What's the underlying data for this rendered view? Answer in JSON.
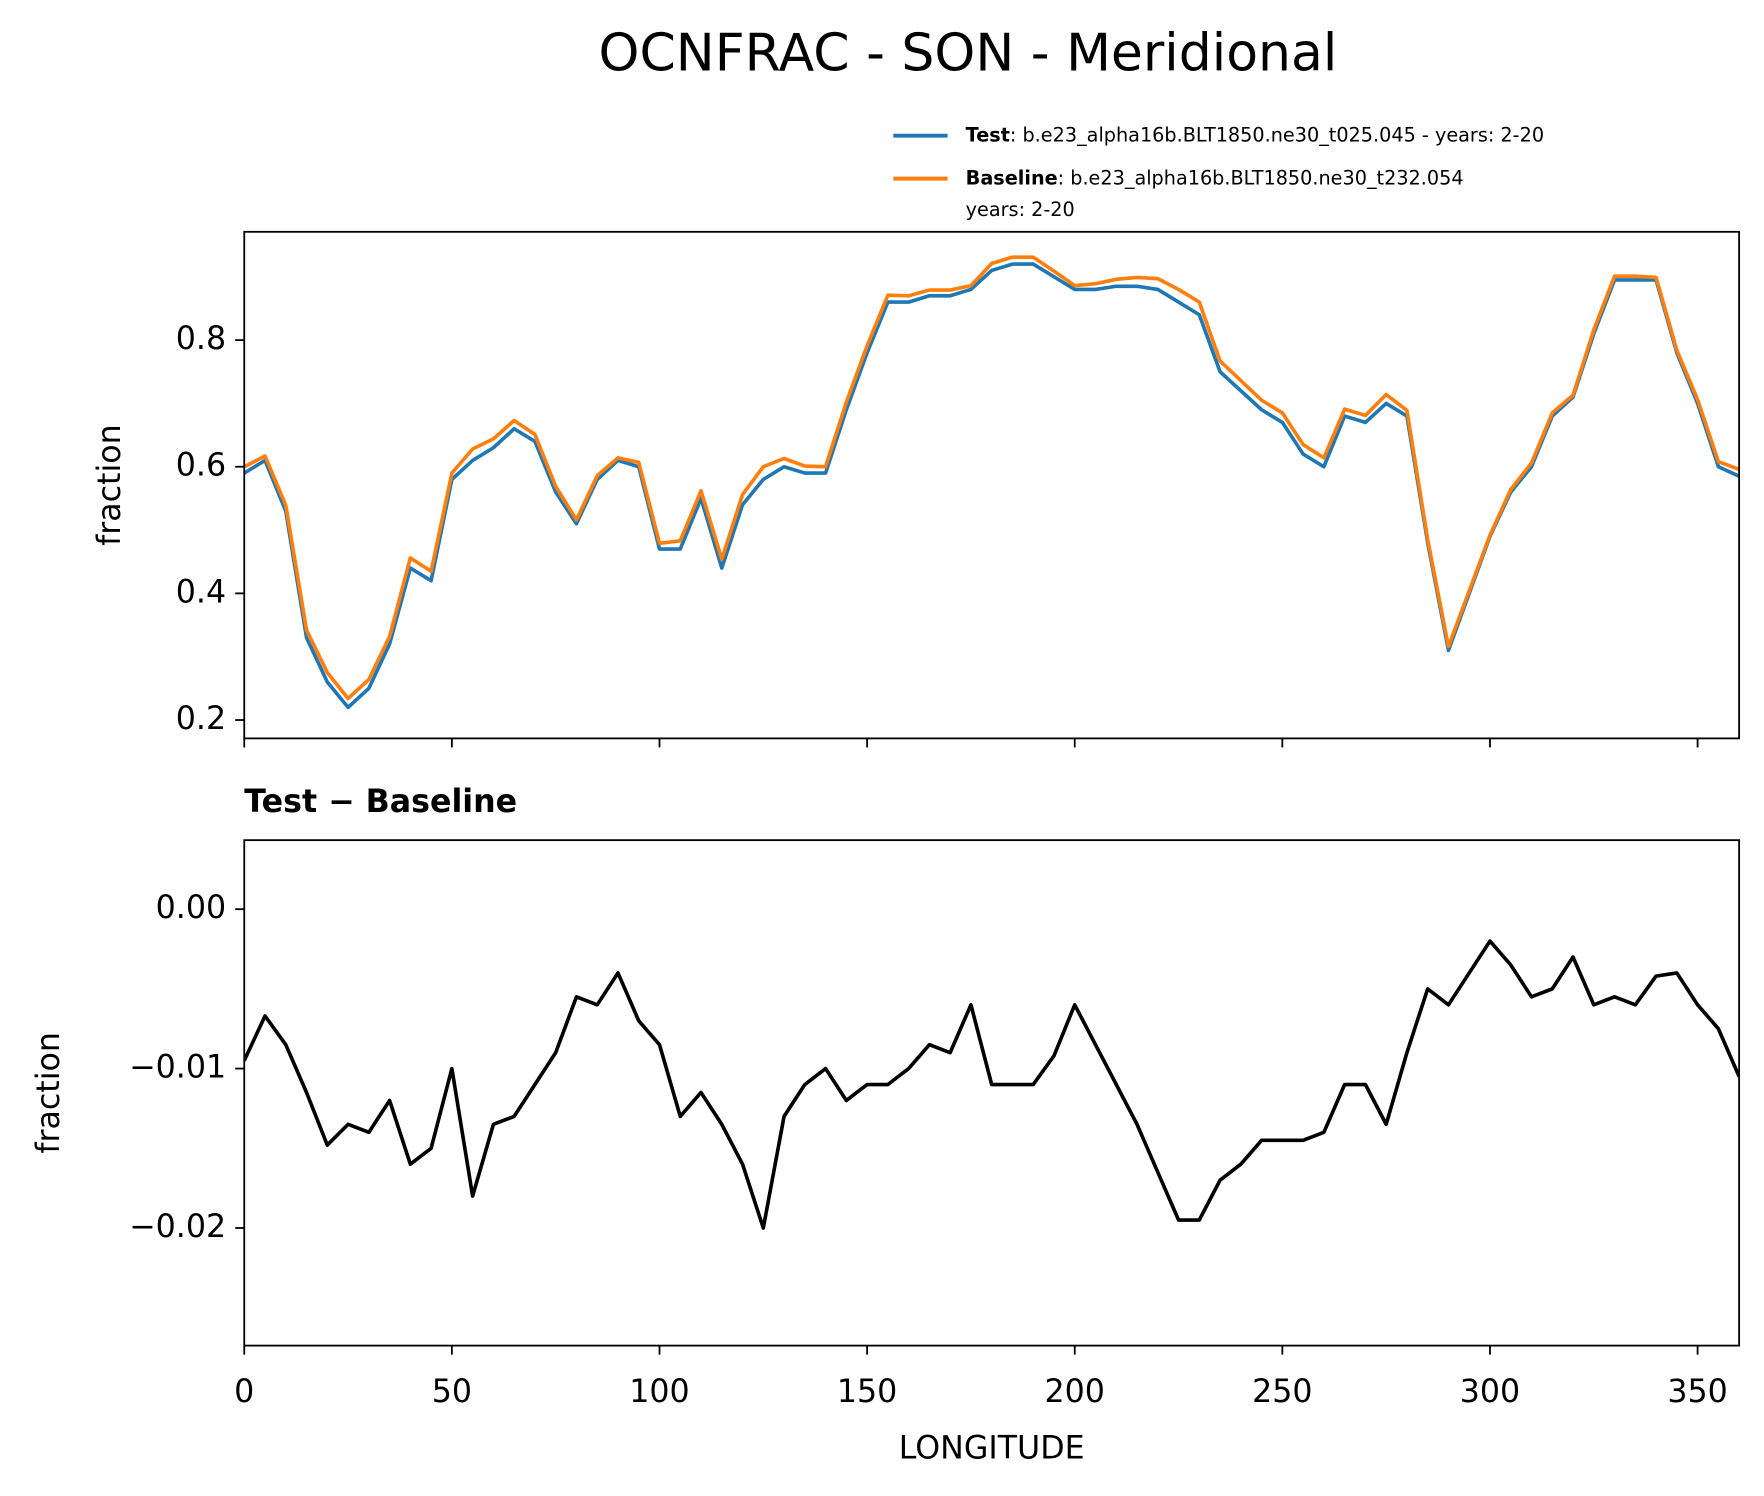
{
  "chart_data": [
    {
      "type": "line",
      "title": "OCNFRAC - SON - Meridional",
      "ylabel": "fraction",
      "x": [
        0,
        5,
        10,
        15,
        20,
        25,
        30,
        35,
        40,
        45,
        50,
        55,
        60,
        65,
        70,
        75,
        80,
        85,
        90,
        95,
        100,
        105,
        110,
        115,
        120,
        125,
        130,
        135,
        140,
        145,
        150,
        155,
        160,
        165,
        170,
        175,
        180,
        185,
        190,
        195,
        200,
        205,
        210,
        215,
        220,
        225,
        230,
        235,
        240,
        245,
        250,
        255,
        260,
        265,
        270,
        275,
        280,
        285,
        290,
        295,
        300,
        305,
        310,
        315,
        320,
        325,
        330,
        335,
        340,
        345,
        350,
        355,
        360
      ],
      "series": [
        {
          "name": "Test",
          "description": ": b.e23_alpha16b.BLT1850.ne30_t025.045 - years: 2-20",
          "color": "#1f77b4",
          "values": [
            0.59,
            0.61,
            0.53,
            0.33,
            0.26,
            0.22,
            0.25,
            0.32,
            0.44,
            0.42,
            0.58,
            0.61,
            0.63,
            0.66,
            0.64,
            0.56,
            0.51,
            0.58,
            0.61,
            0.6,
            0.47,
            0.47,
            0.55,
            0.44,
            0.54,
            0.58,
            0.6,
            0.59,
            0.59,
            0.69,
            0.78,
            0.86,
            0.86,
            0.87,
            0.87,
            0.88,
            0.91,
            0.92,
            0.92,
            0.9,
            0.88,
            0.88,
            0.885,
            0.885,
            0.88,
            0.86,
            0.84,
            0.75,
            0.72,
            0.69,
            0.67,
            0.62,
            0.6,
            0.68,
            0.67,
            0.7,
            0.68,
            0.48,
            0.31,
            0.4,
            0.49,
            0.56,
            0.6,
            0.68,
            0.71,
            0.81,
            0.895,
            0.895,
            0.895,
            0.78,
            0.7,
            0.6,
            0.585
          ]
        },
        {
          "name": "Baseline",
          "description": [
            ": b.e23_alpha16b.BLT1850.ne30_t232.054",
            "years: 2-20"
          ],
          "color": "#ff7f0e",
          "values": [
            0.6,
            0.617,
            0.539,
            0.342,
            0.275,
            0.234,
            0.264,
            0.332,
            0.456,
            0.435,
            0.59,
            0.628,
            0.644,
            0.673,
            0.651,
            0.569,
            0.516,
            0.586,
            0.614,
            0.607,
            0.479,
            0.483,
            0.562,
            0.454,
            0.556,
            0.6,
            0.613,
            0.601,
            0.6,
            0.702,
            0.791,
            0.871,
            0.87,
            0.879,
            0.879,
            0.886,
            0.921,
            0.931,
            0.931,
            0.909,
            0.886,
            0.889,
            0.896,
            0.899,
            0.897,
            0.88,
            0.86,
            0.767,
            0.736,
            0.705,
            0.685,
            0.635,
            0.614,
            0.691,
            0.681,
            0.714,
            0.689,
            0.485,
            0.316,
            0.404,
            0.492,
            0.564,
            0.606,
            0.685,
            0.713,
            0.816,
            0.901,
            0.901,
            0.899,
            0.784,
            0.706,
            0.608,
            0.596
          ]
        }
      ],
      "xlim": [
        0,
        360
      ],
      "xticks": [
        0,
        50,
        100,
        150,
        200,
        250,
        300,
        350
      ],
      "ylim": [
        0.171,
        0.971
      ],
      "yticks": [
        0.2,
        0.4,
        0.6,
        0.8
      ]
    },
    {
      "type": "line",
      "title": "Test − Baseline",
      "ylabel": "fraction",
      "xlabel": "LONGITUDE",
      "x": [
        0,
        5,
        10,
        15,
        20,
        25,
        30,
        35,
        40,
        45,
        50,
        55,
        60,
        65,
        70,
        75,
        80,
        85,
        90,
        95,
        100,
        105,
        110,
        115,
        120,
        125,
        130,
        135,
        140,
        145,
        150,
        155,
        160,
        165,
        170,
        175,
        180,
        185,
        190,
        195,
        200,
        205,
        210,
        215,
        220,
        225,
        230,
        235,
        240,
        245,
        250,
        255,
        260,
        265,
        270,
        275,
        280,
        285,
        290,
        295,
        300,
        305,
        310,
        315,
        320,
        325,
        330,
        335,
        340,
        345,
        350,
        355,
        360
      ],
      "series": [
        {
          "name": "Test − Baseline",
          "color": "#000000",
          "values": [
            -0.0095,
            -0.0067,
            -0.0085,
            -0.0115,
            -0.0148,
            -0.0135,
            -0.014,
            -0.012,
            -0.016,
            -0.015,
            -0.01,
            -0.018,
            -0.0135,
            -0.013,
            -0.011,
            -0.009,
            -0.0055,
            -0.006,
            -0.004,
            -0.007,
            -0.0085,
            -0.013,
            -0.0115,
            -0.0135,
            -0.016,
            -0.02,
            -0.013,
            -0.011,
            -0.01,
            -0.012,
            -0.011,
            -0.011,
            -0.01,
            -0.0085,
            -0.009,
            -0.006,
            -0.011,
            -0.011,
            -0.011,
            -0.0092,
            -0.006,
            -0.0085,
            -0.011,
            -0.0135,
            -0.0165,
            -0.0195,
            -0.0195,
            -0.017,
            -0.016,
            -0.0145,
            -0.0145,
            -0.0145,
            -0.014,
            -0.011,
            -0.011,
            -0.0135,
            -0.009,
            -0.005,
            -0.006,
            -0.004,
            -0.002,
            -0.0035,
            -0.0055,
            -0.005,
            -0.003,
            -0.006,
            -0.0055,
            -0.006,
            -0.0042,
            -0.004,
            -0.006,
            -0.0075,
            -0.0105
          ]
        }
      ],
      "xlim": [
        0,
        360
      ],
      "xticks": [
        0,
        50,
        100,
        150,
        200,
        250,
        300,
        350
      ],
      "ylim": [
        -0.02738,
        0.00433
      ],
      "yticks": [
        {
          "value": -0.02,
          "label": "−0.02"
        },
        {
          "value": -0.01,
          "label": "−0.01"
        },
        {
          "value": 0,
          "label": "0.00"
        }
      ]
    }
  ]
}
